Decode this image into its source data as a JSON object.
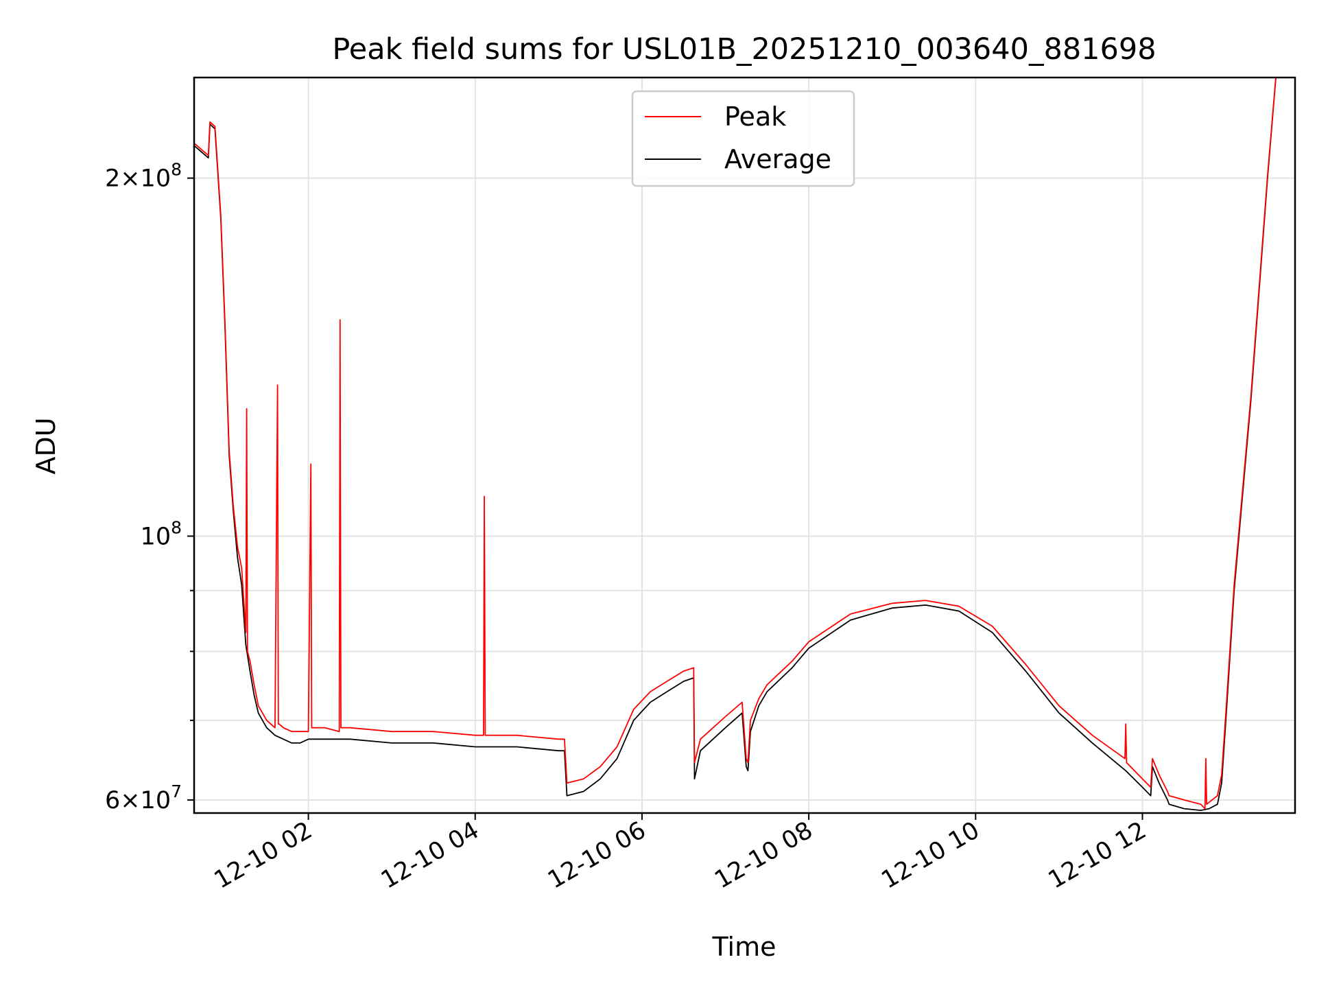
{
  "chart_data": {
    "type": "line",
    "title": "Peak field sums for USL01B_20251210_003640_881698",
    "xlabel": "Time",
    "ylabel": "ADU",
    "yscale": "log",
    "xlim_hours": [
      0.63,
      13.83
    ],
    "ylim": [
      58500000,
      243000000
    ],
    "x_ticks": [
      {
        "hours": 2,
        "label": "12-10 02"
      },
      {
        "hours": 4,
        "label": "12-10 04"
      },
      {
        "hours": 6,
        "label": "12-10 06"
      },
      {
        "hours": 8,
        "label": "12-10 08"
      },
      {
        "hours": 10,
        "label": "12-10 10"
      },
      {
        "hours": 12,
        "label": "12-10 12"
      }
    ],
    "y_major_ticks": [
      {
        "value": 60000000,
        "base": "6×10",
        "exp": "7"
      },
      {
        "value": 100000000,
        "base": "10",
        "exp": "8"
      },
      {
        "value": 200000000,
        "base": "2×10",
        "exp": "8"
      }
    ],
    "y_minor_ticks": [
      70000000,
      80000000,
      90000000
    ],
    "legend": {
      "placement": "top-center",
      "entries": [
        "Peak",
        "Average"
      ]
    },
    "series": [
      {
        "name": "Average",
        "color": "#000000",
        "x": [
          0.63,
          0.8,
          0.82,
          0.88,
          0.95,
          1.0,
          1.05,
          1.1,
          1.15,
          1.2,
          1.25,
          1.3,
          1.35,
          1.4,
          1.5,
          1.6,
          1.7,
          1.8,
          1.9,
          2.0,
          2.5,
          3.0,
          3.5,
          4.0,
          4.5,
          5.0,
          5.07,
          5.1,
          5.3,
          5.5,
          5.7,
          5.9,
          6.1,
          6.3,
          6.5,
          6.62,
          6.63,
          6.7,
          7.0,
          7.2,
          7.25,
          7.27,
          7.3,
          7.4,
          7.5,
          7.8,
          8.0,
          8.5,
          9.0,
          9.4,
          9.8,
          10.2,
          10.6,
          11.0,
          11.4,
          11.8,
          12.0,
          12.1,
          12.12,
          12.2,
          12.3,
          12.32,
          12.5,
          12.7,
          12.8,
          12.9,
          12.95,
          13.0,
          13.1,
          13.3,
          13.5,
          13.6,
          13.7,
          13.83
        ],
        "y": [
          213000000,
          208000000,
          222000000,
          220000000,
          185000000,
          150000000,
          117000000,
          105000000,
          96000000,
          91000000,
          81000000,
          77000000,
          73500000,
          71000000,
          69000000,
          68000000,
          67500000,
          67000000,
          67000000,
          67500000,
          67500000,
          67000000,
          67000000,
          66500000,
          66500000,
          66000000,
          66000000,
          60500000,
          61000000,
          62500000,
          65000000,
          70000000,
          72500000,
          74000000,
          75500000,
          76000000,
          62500000,
          66000000,
          69000000,
          71000000,
          64000000,
          63500000,
          68500000,
          72000000,
          74000000,
          77500000,
          80500000,
          85000000,
          87000000,
          87500000,
          86500000,
          83000000,
          77000000,
          71000000,
          67000000,
          63500000,
          61500000,
          60500000,
          64000000,
          62000000,
          60000000,
          59500000,
          59000000,
          58800000,
          59000000,
          59500000,
          62000000,
          70000000,
          90000000,
          130000000,
          200000000,
          243000000,
          243000000,
          243000000
        ]
      },
      {
        "name": "Peak",
        "color": "#ff0000",
        "x": [
          0.63,
          0.8,
          0.82,
          0.88,
          0.95,
          1.0,
          1.05,
          1.1,
          1.15,
          1.2,
          1.25,
          1.26,
          1.27,
          1.3,
          1.35,
          1.4,
          1.5,
          1.6,
          1.63,
          1.64,
          1.65,
          1.7,
          1.8,
          1.9,
          2.0,
          2.03,
          2.04,
          2.05,
          2.2,
          2.37,
          2.38,
          2.39,
          2.5,
          3.0,
          3.5,
          4.0,
          4.1,
          4.11,
          4.12,
          4.3,
          4.5,
          5.0,
          5.07,
          5.1,
          5.3,
          5.5,
          5.7,
          5.9,
          6.1,
          6.3,
          6.5,
          6.62,
          6.63,
          6.7,
          7.0,
          7.2,
          7.25,
          7.27,
          7.3,
          7.4,
          7.5,
          7.8,
          8.0,
          8.5,
          9.0,
          9.4,
          9.8,
          10.2,
          10.6,
          11.0,
          11.4,
          11.79,
          11.8,
          11.81,
          12.0,
          12.1,
          12.12,
          12.2,
          12.3,
          12.32,
          12.5,
          12.7,
          12.75,
          12.76,
          12.77,
          12.9,
          12.95,
          13.0,
          13.1,
          13.3,
          13.5,
          13.6,
          13.7,
          13.83
        ],
        "y": [
          214000000,
          209000000,
          223000000,
          221000000,
          186000000,
          151000000,
          118000000,
          106000000,
          98000000,
          94000000,
          83000000,
          128000000,
          80000000,
          78500000,
          75000000,
          72000000,
          70000000,
          69000000,
          134000000,
          69500000,
          69500000,
          69000000,
          68500000,
          68500000,
          68500000,
          115000000,
          69000000,
          69000000,
          69000000,
          68500000,
          152000000,
          69000000,
          69000000,
          68500000,
          68500000,
          68000000,
          68000000,
          108000000,
          68000000,
          68000000,
          68000000,
          67500000,
          67500000,
          62000000,
          62500000,
          64000000,
          66500000,
          71500000,
          74000000,
          75500000,
          77000000,
          77500000,
          64500000,
          67500000,
          70500000,
          72500000,
          65000000,
          64500000,
          70000000,
          73000000,
          75000000,
          78500000,
          81500000,
          86000000,
          87800000,
          88300000,
          87300000,
          84000000,
          78000000,
          72000000,
          68000000,
          65000000,
          69500000,
          64500000,
          62500000,
          61500000,
          65000000,
          63000000,
          61000000,
          60500000,
          60000000,
          59500000,
          59000000,
          65000000,
          59500000,
          60500000,
          63000000,
          71000000,
          91000000,
          131000000,
          201000000,
          243000000,
          243000000,
          243000000
        ]
      }
    ]
  }
}
